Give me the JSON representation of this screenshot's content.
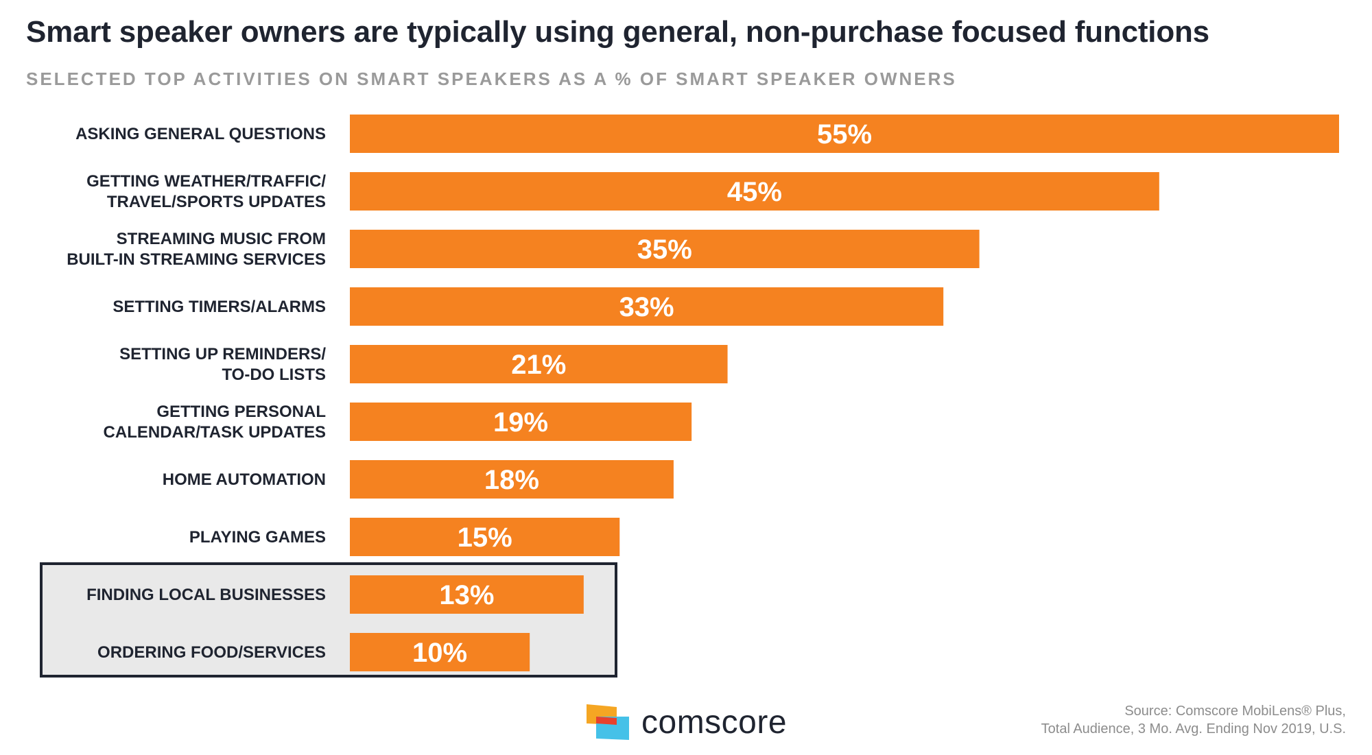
{
  "title": "Smart speaker owners are typically using general, non-purchase focused functions",
  "subtitle": "SELECTED TOP ACTIVITIES ON SMART SPEAKERS AS A % OF SMART SPEAKER OWNERS",
  "chart_data": {
    "type": "bar",
    "orientation": "horizontal",
    "categories": [
      [
        "ASKING GENERAL QUESTIONS"
      ],
      [
        "GETTING WEATHER/TRAFFIC/",
        "TRAVEL/SPORTS UPDATES"
      ],
      [
        "STREAMING MUSIC FROM",
        "BUILT-IN STREAMING SERVICES"
      ],
      [
        "SETTING TIMERS/ALARMS"
      ],
      [
        "SETTING UP REMINDERS/",
        "TO-DO LISTS"
      ],
      [
        "GETTING PERSONAL",
        "CALENDAR/TASK UPDATES"
      ],
      [
        "HOME AUTOMATION"
      ],
      [
        "PLAYING GAMES"
      ],
      [
        "FINDING LOCAL BUSINESSES"
      ],
      [
        "ORDERING FOOD/SERVICES"
      ]
    ],
    "values": [
      55,
      45,
      35,
      33,
      21,
      19,
      18,
      15,
      13,
      10
    ],
    "value_labels": [
      "55%",
      "45%",
      "35%",
      "33%",
      "21%",
      "19%",
      "18%",
      "15%",
      "13%",
      "10%"
    ],
    "highlighted": [
      false,
      false,
      false,
      false,
      false,
      false,
      false,
      false,
      true,
      true
    ],
    "unit": "%",
    "xlim": [
      0,
      55
    ],
    "bar_color": "#f58220",
    "label_color": "#1f2430",
    "value_label_color": "#ffffff"
  },
  "logo": {
    "text": "comscore",
    "icon": "comscore-logo-icon"
  },
  "source": {
    "line1": "Source: Comscore MobiLens® Plus,",
    "line2": "Total Audience, 3 Mo. Avg. Ending Nov 2019, U.S."
  }
}
